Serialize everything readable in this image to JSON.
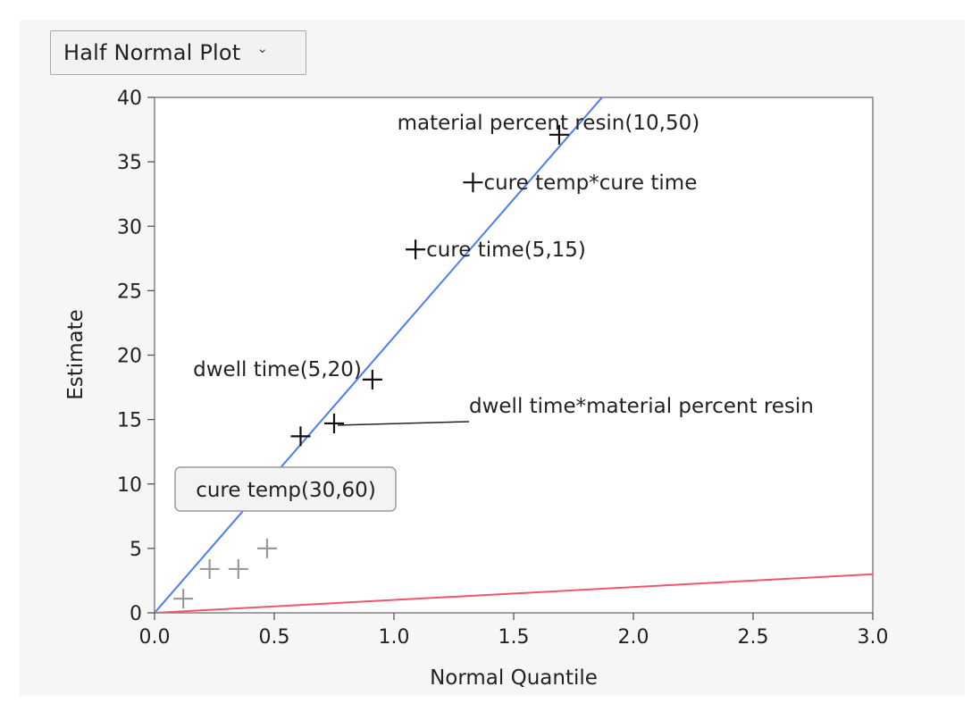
{
  "header": {
    "dropdown_label": "Half Normal Plot",
    "dropdown_icon": "chevron-down-icon"
  },
  "colors": {
    "fit_line": "#4d7cf2",
    "reference_line": "#f0566a",
    "marker": "#111111",
    "marker_muted": "#9a9a9a"
  },
  "chart_data": {
    "type": "scatter",
    "title": "",
    "xlabel": "Normal Quantile",
    "ylabel": "Estimate",
    "xlim": [
      0,
      3
    ],
    "ylim": [
      0,
      40
    ],
    "x_ticks": [
      "0.0",
      "0.5",
      "1.0",
      "1.5",
      "2.0",
      "2.5",
      "3.0"
    ],
    "y_ticks": [
      "0",
      "5",
      "10",
      "15",
      "20",
      "25",
      "30",
      "35",
      "40"
    ],
    "grid": false,
    "points": [
      {
        "x": 0.12,
        "y": 1.1,
        "label": "",
        "muted": true
      },
      {
        "x": 0.23,
        "y": 3.4,
        "label": "",
        "muted": true
      },
      {
        "x": 0.35,
        "y": 3.4,
        "label": "",
        "muted": true
      },
      {
        "x": 0.47,
        "y": 5.0,
        "label": "",
        "muted": true
      },
      {
        "x": 0.61,
        "y": 13.7,
        "label": "",
        "muted": false
      },
      {
        "x": 0.75,
        "y": 14.7,
        "label": "dwell time*material percent resin",
        "muted": false
      },
      {
        "x": 0.91,
        "y": 18.1,
        "label": "dwell time(5,20)",
        "muted": false
      },
      {
        "x": 1.09,
        "y": 28.2,
        "label": "cure time(5,15)",
        "muted": false
      },
      {
        "x": 1.33,
        "y": 33.4,
        "label": "cure temp*cure time",
        "muted": false
      },
      {
        "x": 1.69,
        "y": 37.1,
        "label": "material percent resin(10,50)",
        "muted": false
      }
    ],
    "lines": [
      {
        "name": "",
        "slope": 21.4,
        "color": "fit_line"
      },
      {
        "name": "",
        "slope": 1.0,
        "color": "reference_line"
      }
    ],
    "tooltip": "cure temp(30,60)"
  }
}
